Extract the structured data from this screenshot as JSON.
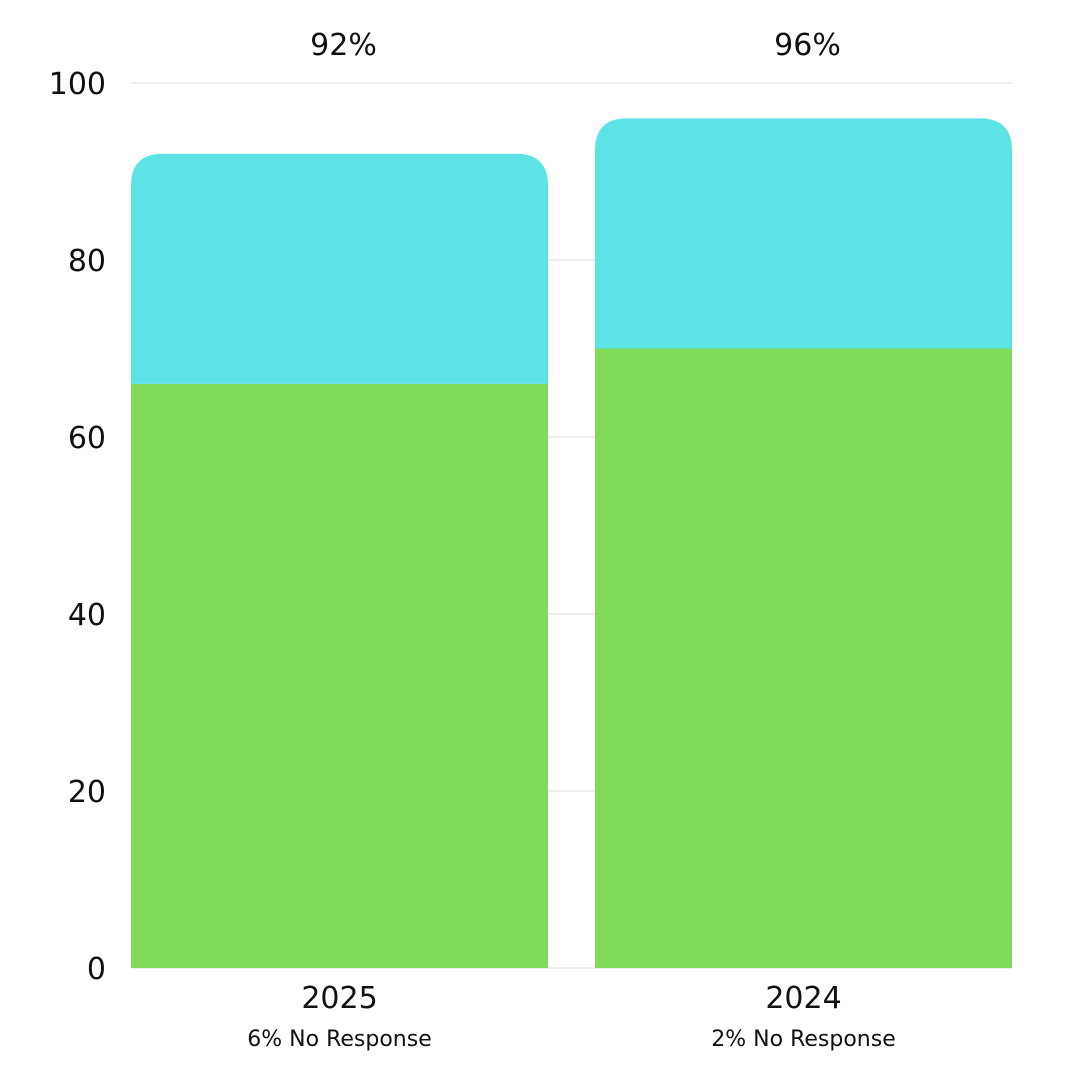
{
  "chart_data": {
    "type": "bar",
    "stacked": true,
    "categories": [
      "2025",
      "2024"
    ],
    "category_notes": [
      "6% No Response",
      "2% No Response"
    ],
    "totals_labels": [
      "92%",
      "96%"
    ],
    "series": [
      {
        "values": [
          66,
          70
        ],
        "color": "#80db5a"
      },
      {
        "values": [
          26,
          26
        ],
        "color": "#5de2e6"
      }
    ],
    "ylim": [
      0,
      100
    ],
    "yticks": [
      0,
      20,
      40,
      60,
      80,
      100
    ],
    "grid": true
  }
}
